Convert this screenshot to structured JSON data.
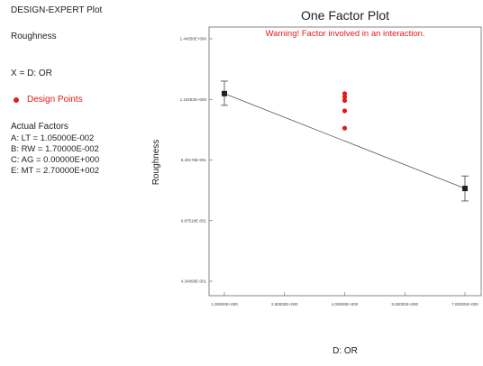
{
  "plot_type_label": "DESIGN-EXPERT Plot",
  "response_label": "Roughness",
  "x_assignment": "X = D: OR",
  "legend": {
    "design_points": "Design Points",
    "design_points_color": "#e41b1b"
  },
  "actual_factors": {
    "heading": "Actual Factors",
    "items": [
      "A: LT = 1.05000E-002",
      "B: RW = 1.70000E-002",
      "C: AG = 0.00000E+000",
      "E: MT = 2.70000E+002"
    ]
  },
  "chart_data": {
    "type": "line",
    "title": "One Factor Plot",
    "annotation": "Warning! Factor involved in an interaction.",
    "annotation_color": "#e41b1b",
    "xlabel": "D: OR",
    "ylabel": "Roughness",
    "xlim": [
      1.0,
      7.0
    ],
    "ylim": [
      0.4349,
      1.4455
    ],
    "x_ticks": [
      1.0,
      2.5,
      4.0,
      5.5,
      7.0
    ],
    "x_tick_labels": [
      "1.00000E+000",
      "2.50000E+000",
      "4.00000E+000",
      "5.50000E+000",
      "7.00000E+000"
    ],
    "y_ticks": [
      0.4349,
      0.6875,
      0.9402,
      1.1928,
      1.4455
    ],
    "y_tick_labels": [
      "4.34858E-001",
      "6.87518E-001",
      "9.40178E-001",
      "1.19284E+000",
      "1.44550E+000"
    ],
    "series": [
      {
        "values": [
          {
            "x": 1.0,
            "y": 1.217,
            "err_low": 1.168,
            "err_high": 1.269
          },
          {
            "x": 7.0,
            "y": 0.8216,
            "err_low": 0.7695,
            "err_high": 0.8737
          }
        ],
        "color": "#222222"
      }
    ],
    "design_points": [
      {
        "x": 4.0,
        "y": 1.217
      },
      {
        "x": 4.0,
        "y": 1.203
      },
      {
        "x": 4.0,
        "y": 1.188
      },
      {
        "x": 4.0,
        "y": 1.145
      },
      {
        "x": 4.0,
        "y": 1.073
      }
    ],
    "grid": false
  }
}
